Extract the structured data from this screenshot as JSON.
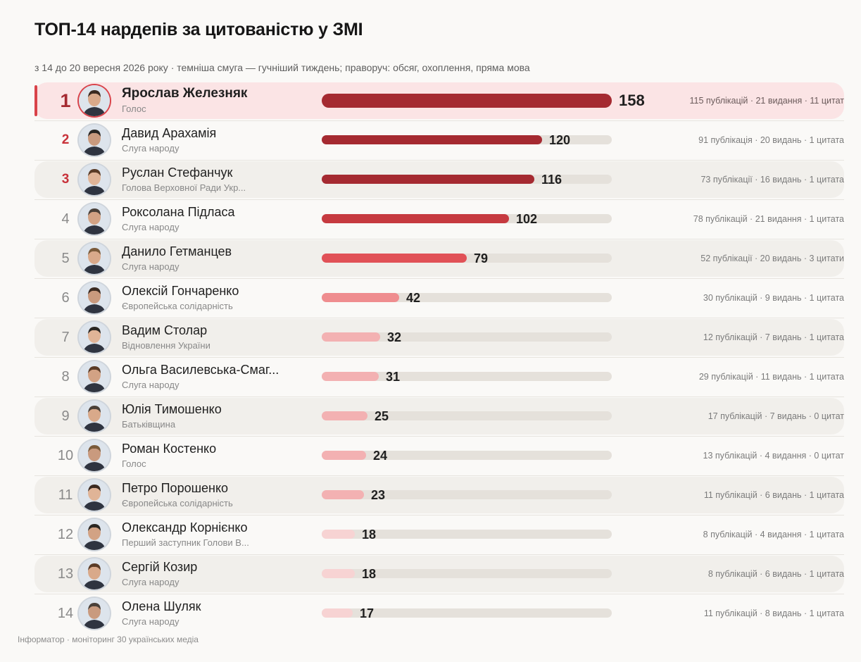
{
  "title": "ТОП-14 нардепів за цитованістю у ЗМІ",
  "subtitle": "з 14 до 20 вересня 2026 року · темніша смуга — гучніший тиждень; праворуч: обсяг, охоплення, пряма мова",
  "footer": "Інформатор · моніторинг 30 українських медіа",
  "colors": {
    "accent": "#d9434a",
    "bar_scale": [
      "#a52a31",
      "#c63a40",
      "#e15157",
      "#ef8d8f",
      "#f3b1b2",
      "#f7d3d3"
    ],
    "track": "#e5e1db"
  },
  "chart_data": {
    "type": "bar",
    "orientation": "horizontal",
    "title": "ТОП-14 нардепів за цитованістю у ЗМІ",
    "xlim": [
      0,
      158
    ],
    "categories": [
      "Ярослав Железняк",
      "Давид Арахамія",
      "Руслан Стефанчук",
      "Роксолана Підласа",
      "Данило Гетманцев",
      "Олексій Гончаренко",
      "Вадим Столар",
      "Ольга Василевська-Смаг...",
      "Юлія Тимошенко",
      "Роман Костенко",
      "Петро Порошенко",
      "Олександр Корнієнко",
      "Сергій Козир",
      "Олена Шуляк"
    ],
    "values": [
      158,
      120,
      116,
      102,
      79,
      42,
      32,
      31,
      25,
      24,
      23,
      18,
      18,
      17
    ],
    "rows": [
      {
        "rank": "1",
        "name": "Ярослав Железняк",
        "party": "Голос",
        "value": 158,
        "meta": "115 публікацій · 21 видання · 11 цитат",
        "icon": "person-avatar-icon"
      },
      {
        "rank": "2",
        "name": "Давид Арахамія",
        "party": "Слуга народу",
        "value": 120,
        "meta": "91 публікація · 20 видань · 1 цитата",
        "icon": "person-avatar-icon"
      },
      {
        "rank": "3",
        "name": "Руслан Стефанчук",
        "party": "Голова Верховної Ради Укр...",
        "value": 116,
        "meta": "73 публікації · 16 видань · 1 цитата",
        "icon": "person-avatar-icon"
      },
      {
        "rank": "4",
        "name": "Роксолана Підласа",
        "party": "Слуга народу",
        "value": 102,
        "meta": "78 публікацій · 21 видання · 1 цитата",
        "icon": "person-avatar-icon"
      },
      {
        "rank": "5",
        "name": "Данило Гетманцев",
        "party": "Слуга народу",
        "value": 79,
        "meta": "52 публікації · 20 видань · 3 цитати",
        "icon": "person-avatar-icon"
      },
      {
        "rank": "6",
        "name": "Олексій Гончаренко",
        "party": "Європейська солідарність",
        "value": 42,
        "meta": "30 публікацій · 9 видань · 1 цитата",
        "icon": "person-avatar-icon"
      },
      {
        "rank": "7",
        "name": "Вадим Столар",
        "party": "Відновлення України",
        "value": 32,
        "meta": "12 публікацій · 7 видань · 1 цитата",
        "icon": "person-avatar-icon"
      },
      {
        "rank": "8",
        "name": "Ольга Василевська-Смаг...",
        "party": "Слуга народу",
        "value": 31,
        "meta": "29 публікацій · 11 видань · 1 цитата",
        "icon": "person-avatar-icon"
      },
      {
        "rank": "9",
        "name": "Юлія Тимошенко",
        "party": "Батьківщина",
        "value": 25,
        "meta": "17 публікацій · 7 видань · 0 цитат",
        "icon": "person-avatar-icon"
      },
      {
        "rank": "10",
        "name": "Роман Костенко",
        "party": "Голос",
        "value": 24,
        "meta": "13 публікацій · 4 видання · 0 цитат",
        "icon": "person-avatar-icon"
      },
      {
        "rank": "11",
        "name": "Петро Порошенко",
        "party": "Європейська солідарність",
        "value": 23,
        "meta": "11 публікацій · 6 видань · 1 цитата",
        "icon": "person-avatar-icon"
      },
      {
        "rank": "12",
        "name": "Олександр Корнієнко",
        "party": "Перший заступник Голови В...",
        "value": 18,
        "meta": "8 публікацій · 4 видання · 1 цитата",
        "icon": "person-avatar-icon"
      },
      {
        "rank": "13",
        "name": "Сергій Козир",
        "party": "Слуга народу",
        "value": 18,
        "meta": "8 публікацій · 6 видань · 1 цитата",
        "icon": "person-avatar-icon"
      },
      {
        "rank": "14",
        "name": "Олена Шуляк",
        "party": "Слуга народу",
        "value": 17,
        "meta": "11 публікацій · 8 видань · 1 цитата",
        "icon": "person-avatar-icon"
      }
    ]
  }
}
